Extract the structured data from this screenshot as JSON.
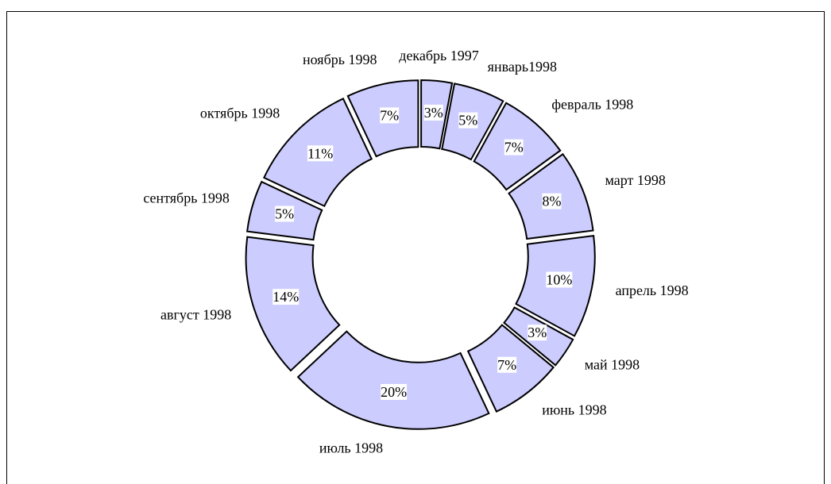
{
  "chart_data": {
    "type": "donut",
    "categories": [
      "декабрь 1997",
      "январь1998",
      "февраль 1998",
      "март 1998",
      "апрель 1998",
      "май 1998",
      "июнь 1998",
      "июль 1998",
      "август 1998",
      "сентябрь 1998",
      "октябрь 1998",
      "ноябрь 1998"
    ],
    "values": [
      3,
      5,
      7,
      8,
      10,
      3,
      7,
      20,
      14,
      5,
      11,
      7
    ],
    "value_labels": [
      "3%",
      "5%",
      "7%",
      "8%",
      "10%",
      "3%",
      "7%",
      "20%",
      "14%",
      "5%",
      "11%",
      "7%"
    ],
    "color": "#ccccff",
    "exploded": true
  }
}
